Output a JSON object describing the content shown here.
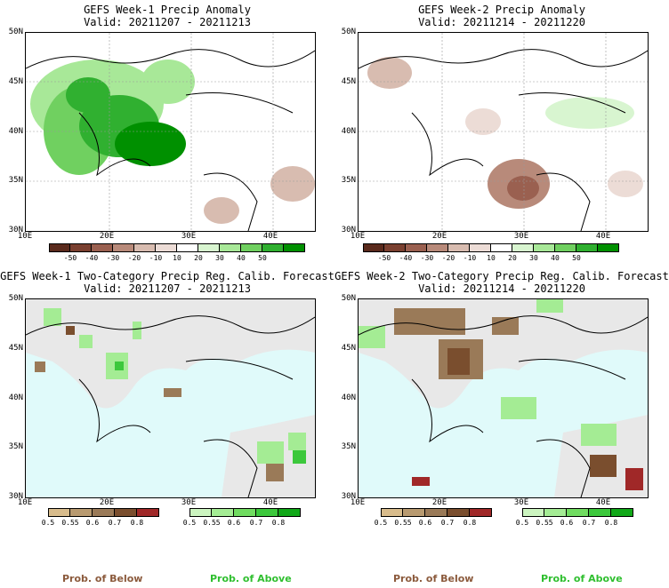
{
  "panels": [
    {
      "title": "GEFS Week-1 Precip Anomaly",
      "valid": "Valid: 20211207 - 20211213"
    },
    {
      "title": "GEFS Week-2 Precip Anomaly",
      "valid": "Valid: 20211214 - 20211220"
    },
    {
      "title": "GEFS Week-1 Two-Category Precip Reg. Calib. Forecast",
      "valid": "Valid: 20211207 - 20211213"
    },
    {
      "title": "GEFS Week-2 Two-Category Precip Reg. Calib. Forecast",
      "valid": "Valid: 20211214 - 20211220"
    }
  ],
  "lat_labels": [
    "50N",
    "45N",
    "40N",
    "35N",
    "30N"
  ],
  "lon_labels": [
    "10E",
    "20E",
    "30E",
    "40E"
  ],
  "anomaly_scale": {
    "ticks": [
      "-50",
      "-40",
      "-30",
      "-20",
      "-10",
      "10",
      "20",
      "30",
      "40",
      "50"
    ],
    "colors": [
      "#5a2a1c",
      "#7a4030",
      "#9a6050",
      "#b88a7a",
      "#d8bcb0",
      "#ecdcd6",
      "#ffffff",
      "#d8f5d0",
      "#a8e898",
      "#70d060",
      "#30b030",
      "#009000"
    ]
  },
  "below_scale": {
    "ticks": [
      "0.5",
      "0.55",
      "0.6",
      "0.7",
      "0.8"
    ],
    "colors": [
      "#d8bc8c",
      "#b89a70",
      "#9a7a58",
      "#7a4e2e",
      "#a02828"
    ]
  },
  "above_scale": {
    "ticks": [
      "0.5",
      "0.55",
      "0.6",
      "0.7",
      "0.8"
    ],
    "colors": [
      "#ccf5c0",
      "#a4ec94",
      "#70dc60",
      "#3cc83c",
      "#10a818"
    ]
  },
  "footer": {
    "below": "Prob. of Below",
    "above": "Prob. of Above"
  },
  "colors": {
    "sea": "#e0fafa",
    "land": "#e8e8e8",
    "below": "#8b5a3c",
    "above": "#2fbf2f"
  }
}
